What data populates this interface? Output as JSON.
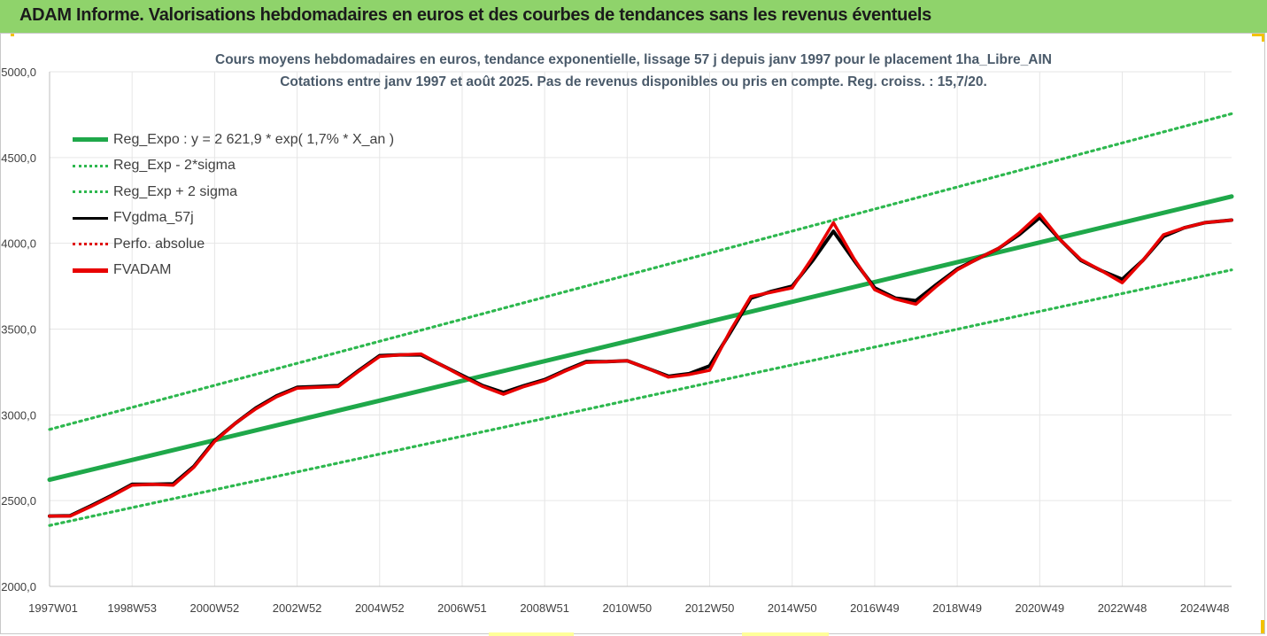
{
  "header": {
    "title": "ADAM Informe. Valorisations hebdomadaires en euros et des courbes de tendances sans les revenus éventuels"
  },
  "colors": {
    "banner": "#8fd36b",
    "reg_expo": "#1fa84a",
    "band": "#2eb84f",
    "fvgdma": "#000000",
    "perfo": "#e00000",
    "fvadam": "#e80000",
    "grid": "#e6e6e6"
  },
  "chart_data": {
    "type": "line",
    "title": "Cours moyens hebdomadaires en euros, tendance exponentielle, lissage 57 j depuis janv 1997 pour le placement 1ha_Libre_AIN",
    "subtitle": "Cotations entre janv 1997 et août 2025. Pas de revenus disponibles ou pris en compte. Reg. croiss. : 15,7/20.",
    "xlabel": "",
    "ylabel": "",
    "ylim": [
      2000,
      5000
    ],
    "yticks": [
      "2000,0",
      "2500,0",
      "3000,0",
      "3500,0",
      "4000,0",
      "4500,0",
      "5000,0"
    ],
    "xlim": [
      1997.0,
      2025.65
    ],
    "xtick_positions": [
      1997.0,
      1999.0,
      2001.0,
      2003.0,
      2005.0,
      2007.0,
      2009.0,
      2011.0,
      2013.0,
      2015.0,
      2017.0,
      2019.0,
      2021.0,
      2023.0,
      2025.0
    ],
    "xtick_labels": [
      "1997W01",
      "1998W53",
      "2000W52",
      "2002W52",
      "2004W52",
      "2006W51",
      "2008W51",
      "2010W50",
      "2012W50",
      "2014W50",
      "2016W49",
      "2018W49",
      "2020W49",
      "2022W48",
      "2024W48"
    ],
    "grid": true,
    "legend_position": "top-left",
    "series": [
      {
        "name": "Reg_Expo : y = 2 621,9 * exp( 1,7% *  X_an )",
        "style": "solid-thick",
        "x": [
          1997.0,
          2025.65
        ],
        "values": [
          2621.9,
          4273
        ]
      },
      {
        "name": "Reg_Exp - 2*sigma",
        "style": "dotted",
        "x": [
          1997.0,
          2025.65
        ],
        "values": [
          2355,
          3845
        ]
      },
      {
        "name": "Reg_Exp + 2 sigma",
        "style": "dotted",
        "x": [
          1997.0,
          2025.65
        ],
        "values": [
          2915,
          4755
        ]
      },
      {
        "name": "FVgdma_57j",
        "style": "solid-black",
        "x": [
          1997.0,
          1997.5,
          1998.0,
          1998.5,
          1999.0,
          1999.5,
          2000.0,
          2000.5,
          2001.0,
          2001.5,
          2002.0,
          2002.5,
          2003.0,
          2003.5,
          2004.0,
          2004.5,
          2005.0,
          2005.5,
          2006.0,
          2006.5,
          2007.0,
          2007.5,
          2008.0,
          2008.5,
          2009.0,
          2009.5,
          2010.0,
          2010.5,
          2011.0,
          2011.5,
          2012.0,
          2012.5,
          2013.0,
          2013.5,
          2014.0,
          2014.5,
          2015.0,
          2015.5,
          2016.0,
          2016.5,
          2017.0,
          2017.5,
          2018.0,
          2018.5,
          2019.0,
          2019.5,
          2020.0,
          2020.5,
          2021.0,
          2021.5,
          2022.0,
          2022.5,
          2023.0,
          2023.5,
          2024.0,
          2024.5,
          2025.0,
          2025.65
        ],
        "values": [
          2410,
          2412,
          2470,
          2530,
          2595,
          2595,
          2598,
          2700,
          2850,
          2950,
          3040,
          3110,
          3160,
          3165,
          3170,
          3260,
          3345,
          3350,
          3350,
          3290,
          3230,
          3170,
          3130,
          3170,
          3205,
          3260,
          3310,
          3310,
          3315,
          3270,
          3225,
          3240,
          3285,
          3480,
          3680,
          3720,
          3750,
          3900,
          4070,
          3900,
          3740,
          3680,
          3665,
          3760,
          3850,
          3910,
          3970,
          4050,
          4150,
          4020,
          3900,
          3840,
          3790,
          3900,
          4040,
          4090,
          4120,
          4135
        ]
      },
      {
        "name": "Perfo. absolue",
        "style": "dotted-red",
        "x": [],
        "values": []
      },
      {
        "name": "FVADAM",
        "style": "solid-thick-red",
        "x": [
          1997.0,
          1997.5,
          1998.0,
          1998.5,
          1999.0,
          1999.5,
          2000.0,
          2000.5,
          2001.0,
          2001.5,
          2002.0,
          2002.5,
          2003.0,
          2003.5,
          2004.0,
          2004.5,
          2005.0,
          2005.5,
          2006.0,
          2006.5,
          2007.0,
          2007.5,
          2008.0,
          2008.5,
          2009.0,
          2009.5,
          2010.0,
          2010.5,
          2011.0,
          2011.5,
          2012.0,
          2012.5,
          2013.0,
          2013.5,
          2014.0,
          2014.5,
          2015.0,
          2015.5,
          2016.0,
          2016.5,
          2017.0,
          2017.5,
          2018.0,
          2018.5,
          2019.0,
          2019.5,
          2020.0,
          2020.5,
          2021.0,
          2021.5,
          2022.0,
          2022.5,
          2023.0,
          2023.5,
          2024.0,
          2024.5,
          2025.0,
          2025.65
        ],
        "values": [
          2410,
          2410,
          2465,
          2525,
          2590,
          2595,
          2590,
          2695,
          2845,
          2950,
          3035,
          3105,
          3155,
          3160,
          3165,
          3255,
          3340,
          3350,
          3355,
          3290,
          3225,
          3165,
          3120,
          3165,
          3200,
          3255,
          3305,
          3310,
          3315,
          3270,
          3220,
          3235,
          3260,
          3490,
          3690,
          3715,
          3740,
          3920,
          4120,
          3910,
          3730,
          3675,
          3645,
          3750,
          3845,
          3910,
          3970,
          4060,
          4170,
          4020,
          3905,
          3840,
          3770,
          3900,
          4050,
          4090,
          4120,
          4135
        ]
      }
    ]
  }
}
